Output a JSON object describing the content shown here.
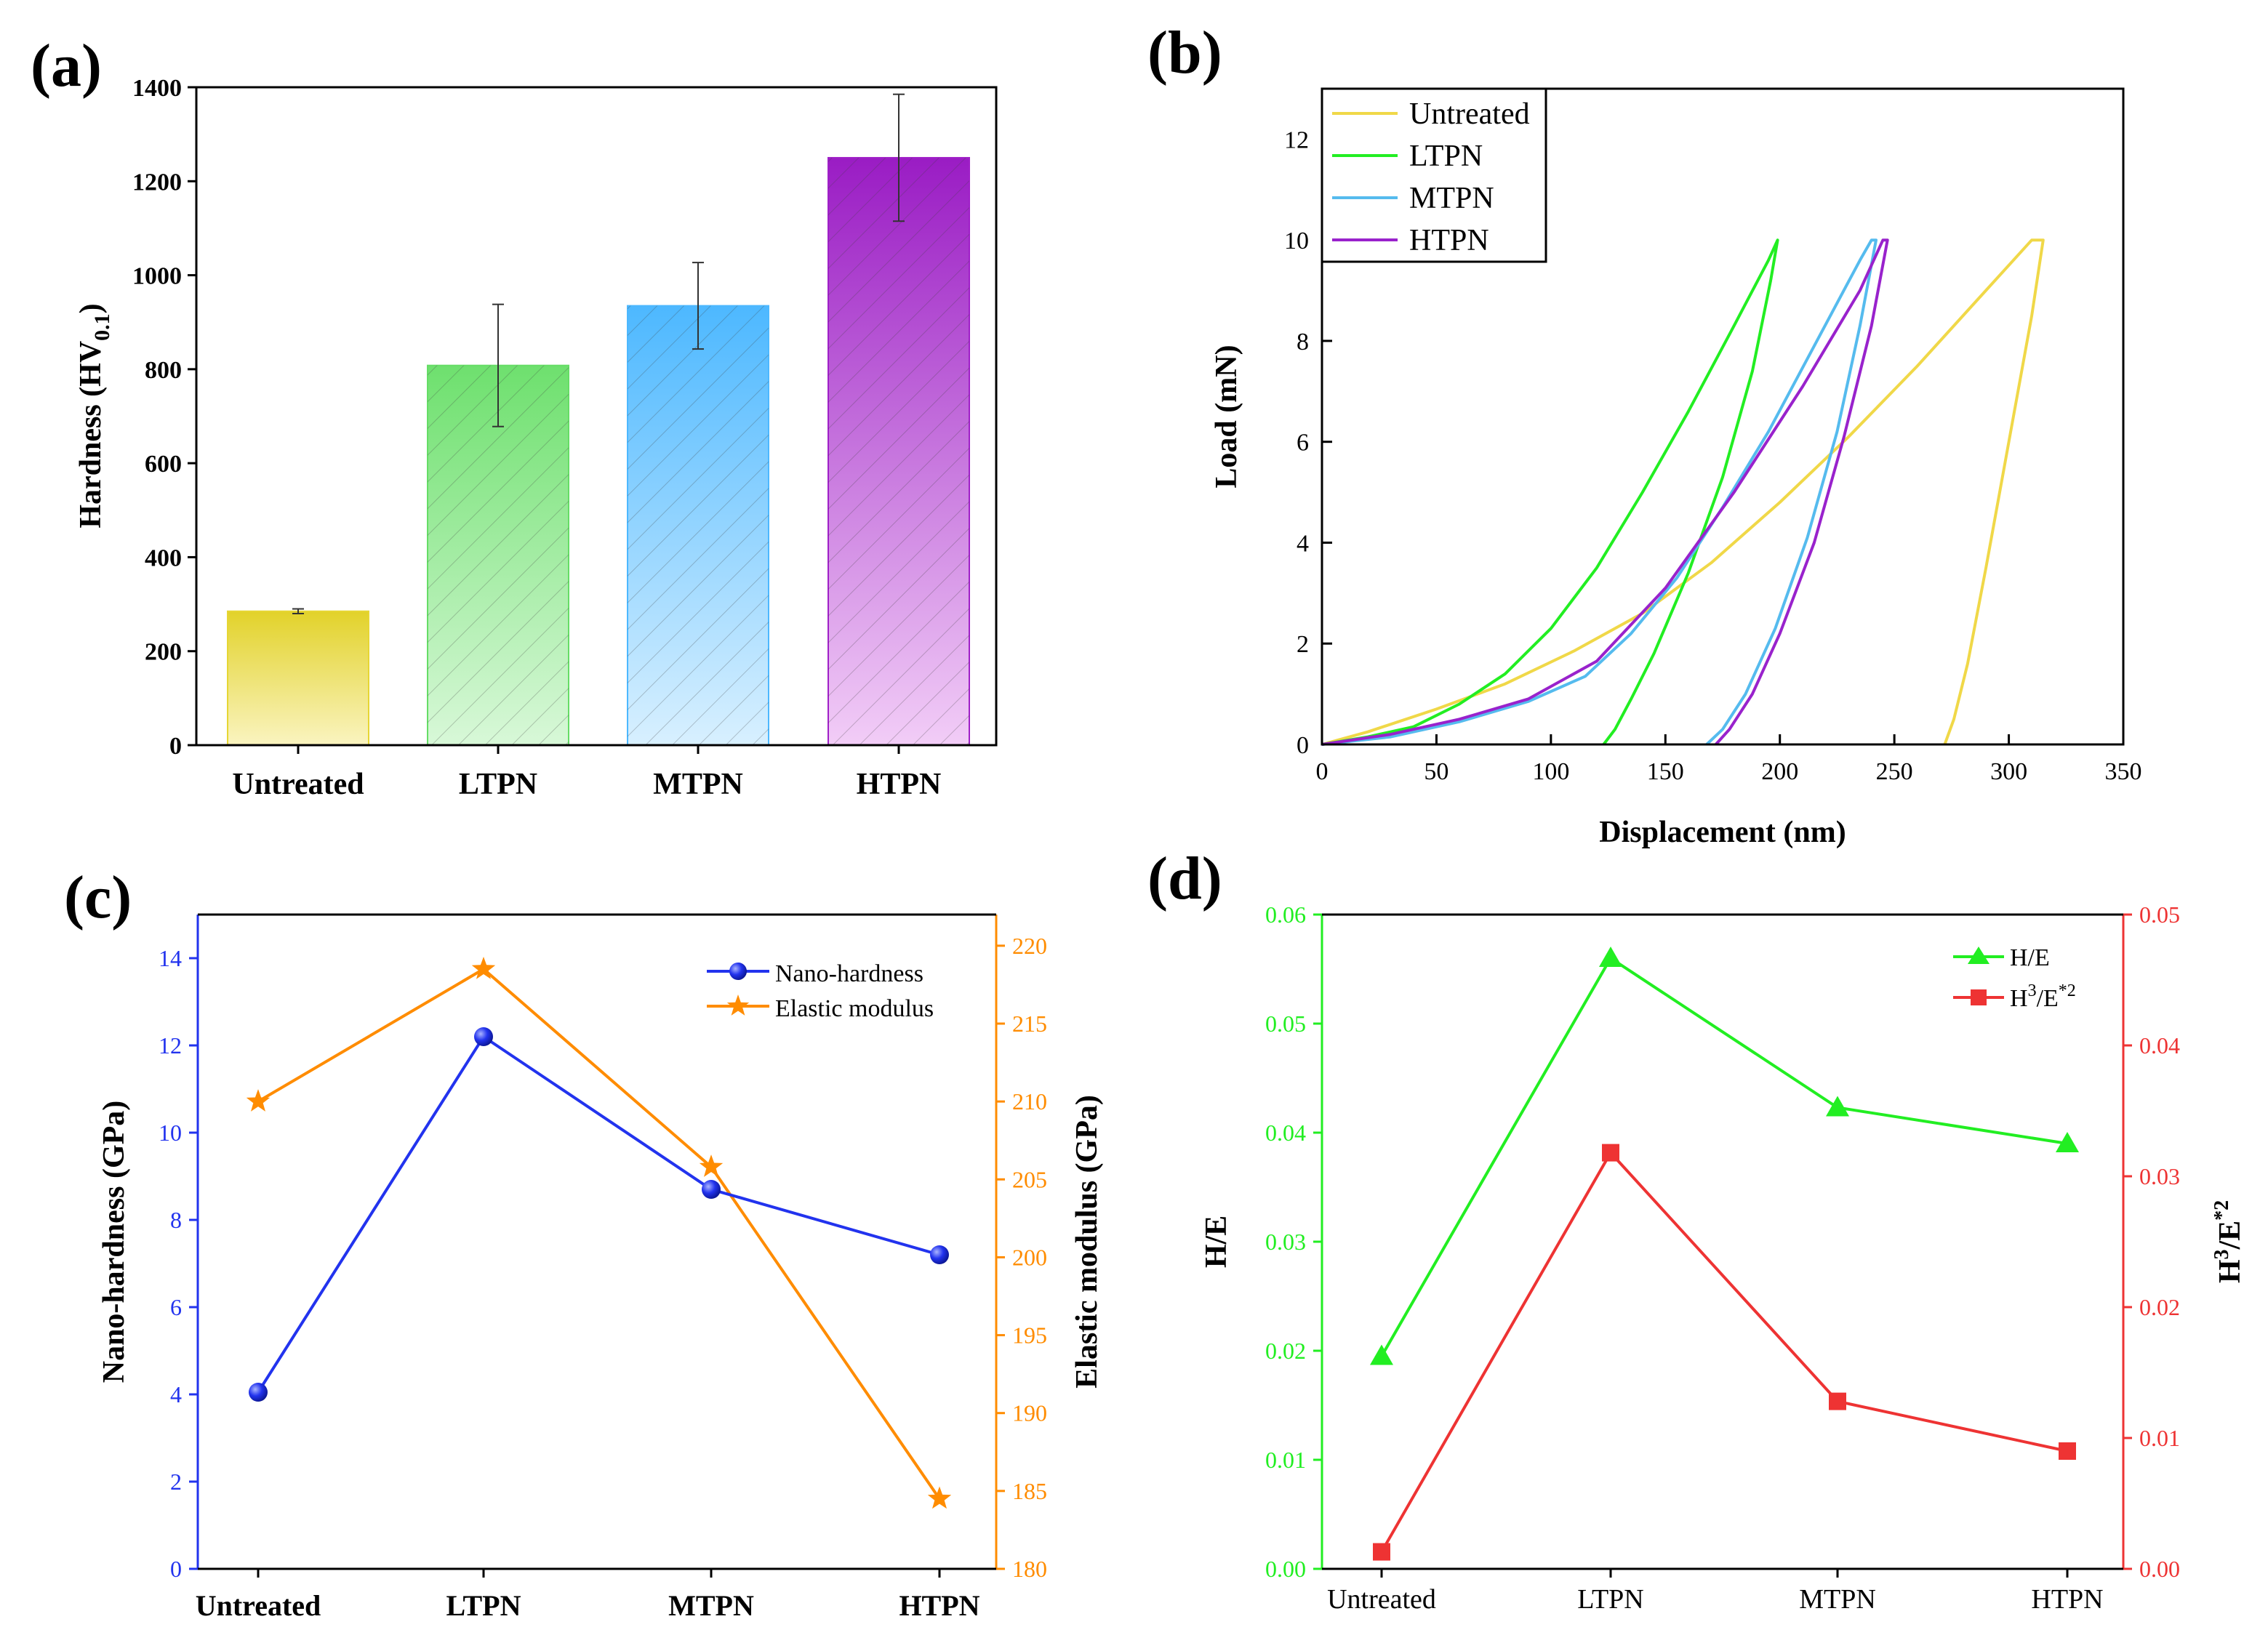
{
  "colors": {
    "untreated_bar": "#e6d634",
    "ltpn_bar": "#66dd66",
    "mtpn_bar": "#4db8ff",
    "htpn_bar": "#a020c8",
    "untreated_line": "#f0d848",
    "ltpn_line": "#22ee22",
    "mtpn_line": "#55bbee",
    "htpn_line": "#9922cc",
    "nano": "#2233ee",
    "elastic": "#ff8c00",
    "he": "#22ee22",
    "h3e2": "#ee3333"
  },
  "chart_data": [
    {
      "id": "a",
      "type": "bar",
      "panel_label": "(a)",
      "categories": [
        "Untreated",
        "LTPN",
        "MTPN",
        "HTPN"
      ],
      "values": [
        285,
        808,
        935,
        1250
      ],
      "errors": [
        5,
        130,
        92,
        135
      ],
      "ylabel_main": "Hardness (HV",
      "ylabel_sub": "0.1",
      "ylabel_end": ")",
      "ylim": [
        0,
        1400
      ],
      "yticks": [
        "0",
        "200",
        "400",
        "600",
        "800",
        "1000",
        "1200",
        "1400"
      ],
      "ytick_values": [
        0,
        200,
        400,
        600,
        800,
        1000,
        1200,
        1400
      ]
    },
    {
      "id": "b",
      "type": "line",
      "panel_label": "(b)",
      "xlabel": "Displacement (nm)",
      "ylabel": "Load (mN)",
      "xlim": [
        0,
        350
      ],
      "ylim": [
        0,
        13
      ],
      "xticks": [
        "0",
        "50",
        "100",
        "150",
        "200",
        "250",
        "300",
        "350"
      ],
      "xtick_values": [
        0,
        50,
        100,
        150,
        200,
        250,
        300,
        350
      ],
      "yticks": [
        "0",
        "2",
        "4",
        "6",
        "8",
        "10",
        "12"
      ],
      "ytick_values": [
        0,
        2,
        4,
        6,
        8,
        10,
        12
      ],
      "legend": [
        "Untreated",
        "LTPN",
        "MTPN",
        "HTPN"
      ],
      "series": [
        {
          "name": "Untreated",
          "x": [
            0,
            20,
            50,
            80,
            110,
            140,
            170,
            200,
            230,
            260,
            290,
            310,
            315,
            310,
            300,
            290,
            282,
            276,
            272
          ],
          "y": [
            0,
            0.25,
            0.7,
            1.2,
            1.85,
            2.6,
            3.6,
            4.8,
            6.1,
            7.5,
            9.0,
            10.0,
            10.0,
            8.5,
            6.0,
            3.5,
            1.6,
            0.5,
            0
          ]
        },
        {
          "name": "LTPN",
          "x": [
            0,
            20,
            40,
            60,
            80,
            100,
            120,
            140,
            160,
            180,
            195,
            199,
            196,
            188,
            175,
            160,
            145,
            135,
            128,
            123
          ],
          "y": [
            0,
            0.15,
            0.35,
            0.8,
            1.4,
            2.3,
            3.5,
            5.0,
            6.6,
            8.3,
            9.6,
            10.0,
            9.2,
            7.4,
            5.3,
            3.4,
            1.8,
            0.9,
            0.3,
            0
          ]
        },
        {
          "name": "MTPN",
          "x": [
            0,
            30,
            60,
            90,
            115,
            135,
            155,
            175,
            195,
            215,
            235,
            240,
            242,
            235,
            225,
            212,
            198,
            185,
            175,
            168
          ],
          "y": [
            0,
            0.15,
            0.45,
            0.85,
            1.35,
            2.2,
            3.3,
            4.7,
            6.2,
            7.9,
            9.6,
            10.0,
            10.0,
            8.3,
            6.2,
            4.1,
            2.3,
            1.0,
            0.3,
            0
          ]
        },
        {
          "name": "HTPN",
          "x": [
            0,
            30,
            60,
            90,
            120,
            150,
            180,
            210,
            235,
            245,
            247,
            240,
            228,
            215,
            200,
            188,
            178,
            172
          ],
          "y": [
            0,
            0.2,
            0.5,
            0.9,
            1.65,
            3.1,
            5.0,
            7.1,
            9.0,
            10.0,
            10.0,
            8.3,
            6.1,
            4.0,
            2.2,
            1.0,
            0.3,
            0
          ]
        }
      ]
    },
    {
      "id": "c",
      "type": "line",
      "panel_label": "(c)",
      "categories": [
        "Untreated",
        "LTPN",
        "MTPN",
        "HTPN"
      ],
      "ylabel_left": "Nano-hardness (GPa)",
      "ylabel_right": "Elastic modulus (GPa)",
      "ylim_left": [
        0,
        15
      ],
      "ylim_right": [
        180,
        222
      ],
      "yticks_left": [
        "0",
        "2",
        "4",
        "6",
        "8",
        "10",
        "12",
        "14"
      ],
      "ytick_values_left": [
        0,
        2,
        4,
        6,
        8,
        10,
        12,
        14
      ],
      "yticks_right": [
        "180",
        "185",
        "190",
        "195",
        "200",
        "205",
        "210",
        "215",
        "220"
      ],
      "ytick_values_right": [
        180,
        185,
        190,
        195,
        200,
        205,
        210,
        215,
        220
      ],
      "series": [
        {
          "name": "Nano-hardness",
          "axis": "left",
          "values": [
            4.05,
            12.2,
            8.7,
            7.2
          ]
        },
        {
          "name": "Elastic modulus",
          "axis": "right",
          "values": [
            210.0,
            218.5,
            205.8,
            184.5
          ]
        }
      ]
    },
    {
      "id": "d",
      "type": "line",
      "panel_label": "(d)",
      "categories": [
        "Untreated",
        "LTPN",
        "MTPN",
        "HTPN"
      ],
      "ylabel_left": "H/E",
      "ylabel_right_main": "H",
      "ylabel_right_sup1": "3",
      "ylabel_right_mid": "/E",
      "ylabel_right_sup2": "*2",
      "ylim_left": [
        0,
        0.06
      ],
      "ylim_right": [
        0,
        0.05
      ],
      "yticks_left": [
        "0.00",
        "0.01",
        "0.02",
        "0.03",
        "0.04",
        "0.05",
        "0.06"
      ],
      "ytick_values_left": [
        0,
        0.01,
        0.02,
        0.03,
        0.04,
        0.05,
        0.06
      ],
      "yticks_right": [
        "0.00",
        "0.01",
        "0.02",
        "0.03",
        "0.04",
        "0.05"
      ],
      "ytick_values_right": [
        0,
        0.01,
        0.02,
        0.03,
        0.04,
        0.05
      ],
      "legend_he": "H/E",
      "legend_h3_main": "H",
      "legend_h3_sup1": "3",
      "legend_h3_mid": "/E",
      "legend_h3_sup2": "*2",
      "series": [
        {
          "name": "H/E",
          "axis": "left",
          "values": [
            0.0195,
            0.056,
            0.0423,
            0.039
          ]
        },
        {
          "name": "H3/E*2",
          "axis": "right",
          "values": [
            0.0013,
            0.0318,
            0.0128,
            0.009
          ]
        }
      ]
    }
  ]
}
